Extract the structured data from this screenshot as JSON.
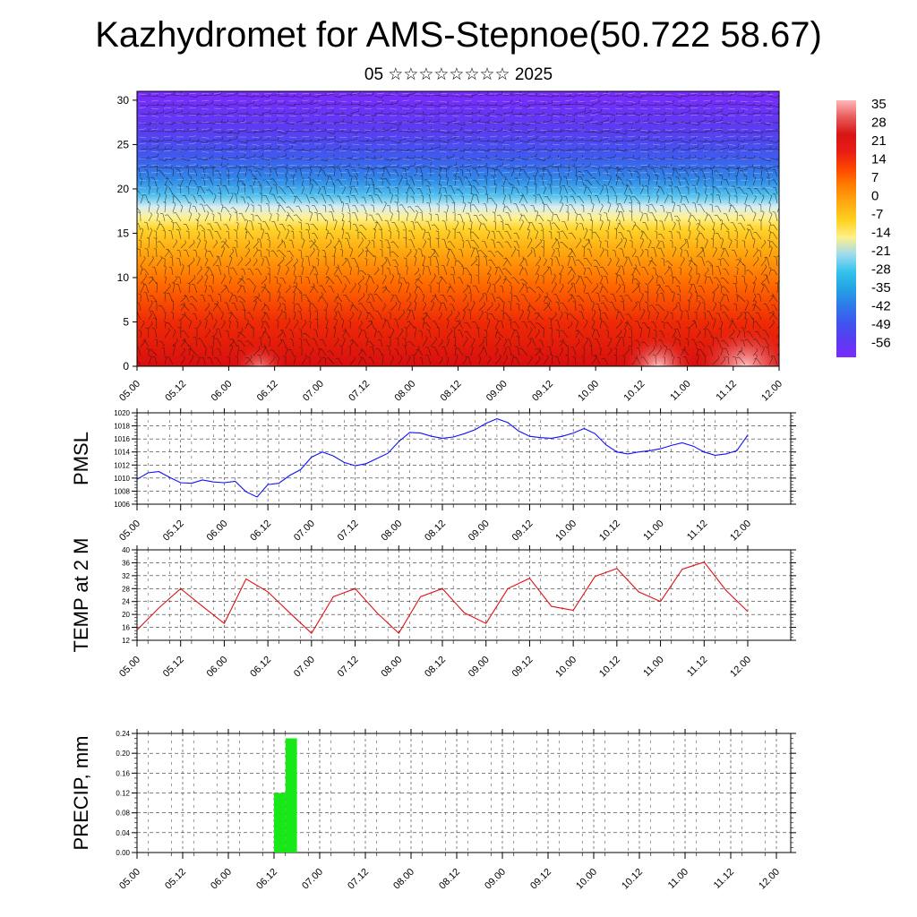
{
  "page": {
    "title": "Kazhydromet for AMS-Stepnoe(50.722 58.67)",
    "subtitle": "05 ☆☆☆☆☆☆☆☆ 2025"
  },
  "colors": {
    "pmsl_line": "#1010ff",
    "temp_line": "#e01010",
    "precip_bar": "#18e818",
    "colorbar": [
      "#7b2bff",
      "#5a3cf0",
      "#3f55ee",
      "#2f7ae8",
      "#23a3e4",
      "#34c3ec",
      "#9fdbf0",
      "#fff08c",
      "#ffd21e",
      "#ffab12",
      "#ff7f00",
      "#ff4600",
      "#e81e14",
      "#d81414",
      "#e85a5a",
      "#ffb8b8"
    ]
  },
  "chart_data": [
    {
      "type": "heatmap",
      "title": "Kazhydromet for AMS-Stepnoe(50.722 58.67)",
      "subtitle": "05 ☆☆☆☆☆☆☆☆ 2025",
      "x_ticks": [
        "05.00",
        "05.12",
        "06.00",
        "06.12",
        "07.00",
        "07.12",
        "08.00",
        "08.12",
        "09.00",
        "09.12",
        "10.00",
        "10.12",
        "11.00",
        "11.12",
        "12.00"
      ],
      "y_ticks": [
        "0",
        "5",
        "10",
        "15",
        "20",
        "25",
        "30"
      ],
      "ylim": [
        0,
        31
      ],
      "colorbar_labels": [
        "35",
        "28",
        "21",
        "14",
        "7",
        "0",
        "-7",
        "-14",
        "-21",
        "-28",
        "-35",
        "-42",
        "-49",
        "-56"
      ],
      "overlay": "wind barbs"
    },
    {
      "type": "line",
      "ylabel": "PMSL",
      "ylim": [
        1006,
        1020
      ],
      "y_ticks": [
        "1006",
        "1008",
        "1010",
        "1012",
        "1014",
        "1016",
        "1018",
        "1020"
      ],
      "x_ticks": [
        "05.00",
        "05.12",
        "06.00",
        "06.12",
        "07.00",
        "07.12",
        "08.00",
        "08.12",
        "09.00",
        "09.12",
        "10.00",
        "10.12",
        "11.00",
        "11.12",
        "12.00"
      ],
      "x": [
        0,
        3,
        6,
        9,
        12,
        15,
        18,
        21,
        24,
        27,
        30,
        33,
        36,
        39,
        42,
        45,
        48,
        51,
        54,
        57,
        60,
        63,
        66,
        69,
        72,
        75,
        78,
        81,
        84,
        87,
        90,
        93,
        96,
        99,
        102,
        105,
        108,
        111,
        114,
        117,
        120,
        123,
        126,
        129,
        132,
        135,
        138,
        141,
        144,
        147,
        150,
        153,
        156,
        159,
        162,
        165,
        168
      ],
      "series": [
        {
          "values": [
            1009.8,
            1010.8,
            1011.0,
            1010.1,
            1009.3,
            1009.2,
            1009.7,
            1009.4,
            1009.3,
            1009.5,
            1007.9,
            1007.1,
            1009.0,
            1009.2,
            1010.4,
            1011.3,
            1013.2,
            1014.0,
            1013.4,
            1012.4,
            1011.9,
            1012.2,
            1013.0,
            1013.8,
            1015.6,
            1017.0,
            1016.9,
            1016.4,
            1016.1,
            1016.3,
            1016.8,
            1017.4,
            1018.4,
            1019.1,
            1018.5,
            1017.2,
            1016.4,
            1016.2,
            1016.1,
            1016.4,
            1016.9,
            1017.6,
            1016.8,
            1015.1,
            1014.0,
            1013.7,
            1014.0,
            1014.2,
            1014.5,
            1015.0,
            1015.4,
            1014.9,
            1014.0,
            1013.5,
            1013.7,
            1014.2,
            1016.6
          ]
        }
      ]
    },
    {
      "type": "line",
      "ylabel": "TEMP at 2 M",
      "ylim": [
        12,
        40
      ],
      "y_ticks": [
        "12",
        "16",
        "20",
        "24",
        "28",
        "32",
        "36",
        "40"
      ],
      "x_ticks": [
        "05.00",
        "05.12",
        "06.00",
        "06.12",
        "07.00",
        "07.12",
        "08.00",
        "08.12",
        "09.00",
        "09.12",
        "10.00",
        "10.12",
        "11.00",
        "11.12",
        "12.00"
      ],
      "x": [
        0,
        6,
        12,
        18,
        24,
        30,
        36,
        42,
        48,
        54,
        60,
        66,
        72,
        78,
        84,
        90,
        96,
        102,
        108,
        114,
        120,
        126,
        132,
        138,
        144,
        150,
        156,
        162,
        168
      ],
      "series": [
        {
          "values": [
            15.2,
            22.0,
            28.0,
            22.5,
            17.2,
            31.0,
            27.0,
            20.5,
            14.2,
            25.5,
            28.0,
            20.5,
            14.2,
            25.5,
            28.0,
            20.5,
            17.2,
            28.0,
            31.2,
            22.5,
            21.3,
            31.8,
            34.2,
            27.0,
            24.0,
            34.0,
            36.2,
            27.5,
            20.9
          ]
        }
      ]
    },
    {
      "type": "bar",
      "ylabel": "PRECIP, mm",
      "ylim": [
        0,
        0.24
      ],
      "y_ticks": [
        "0.00",
        "0.04",
        "0.08",
        "0.12",
        "0.16",
        "0.20",
        "0.24"
      ],
      "x_ticks": [
        "05.00",
        "05.12",
        "06.00",
        "06.12",
        "07.00",
        "07.12",
        "08.00",
        "08.12",
        "09.00",
        "09.12",
        "10.00",
        "10.12",
        "11.00",
        "11.12",
        "12.00"
      ],
      "bars": [
        {
          "start": 36,
          "end": 39,
          "value": 0.12
        },
        {
          "start": 39,
          "end": 42,
          "value": 0.23
        }
      ]
    }
  ]
}
